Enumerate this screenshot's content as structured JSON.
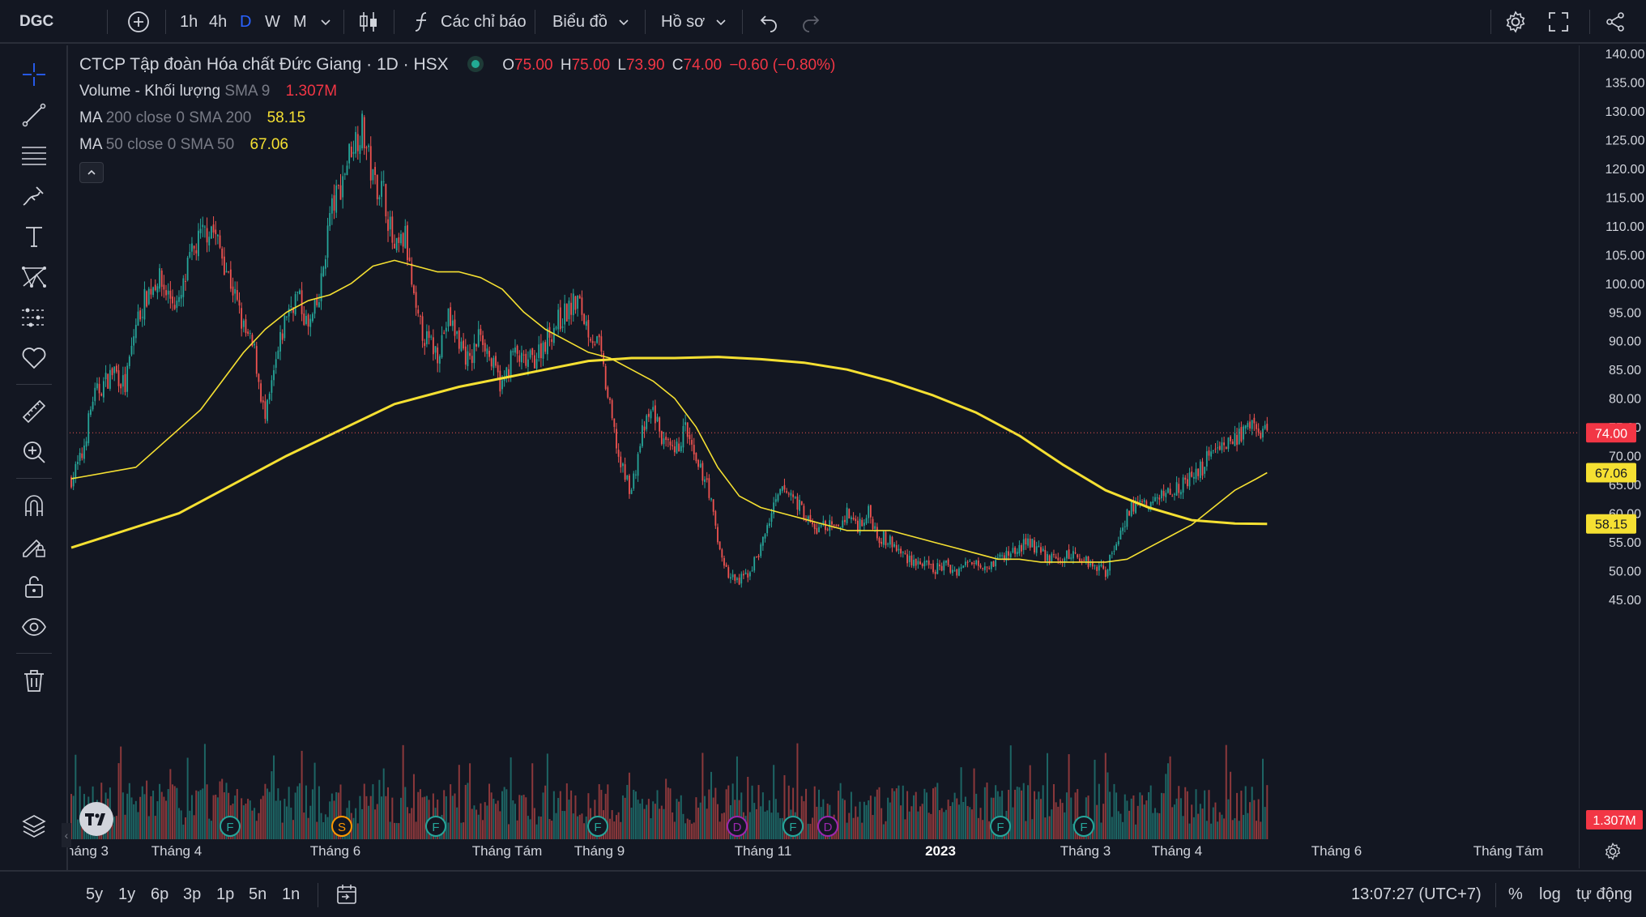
{
  "toolbar": {
    "symbol": "DGC",
    "intervals": [
      "1h",
      "4h",
      "D",
      "W",
      "M"
    ],
    "active_interval": "D",
    "indicators_label": "Các chỉ báo",
    "chart_type_label": "Biểu đồ",
    "profile_label": "Hồ sơ"
  },
  "legend": {
    "title": "CTCP Tập đoàn Hóa chất Đức Giang · 1D · HSX",
    "o_label": "O",
    "o": "75.00",
    "h_label": "H",
    "h": "75.00",
    "l_label": "L",
    "l": "73.90",
    "c_label": "C",
    "c": "74.00",
    "change": "−0.60 (−0.80%)",
    "volume_name": "Volume - Khối lượng",
    "volume_params": "SMA 9",
    "volume_value": "1.307M",
    "ma200_name": "MA",
    "ma200_params": "200 close 0 SMA 200",
    "ma200_value": "58.15",
    "ma50_name": "MA",
    "ma50_params": "50 close 0 SMA 50",
    "ma50_value": "67.06"
  },
  "price_axis": {
    "ticks": [
      "140.00",
      "135.00",
      "130.00",
      "125.00",
      "120.00",
      "115.00",
      "110.00",
      "105.00",
      "100.00",
      "95.00",
      "90.00",
      "85.00",
      "80.00",
      "75.00",
      "70.00",
      "65.00",
      "60.00",
      "55.00",
      "50.00",
      "45.00"
    ],
    "last_price": "74.00",
    "ma50_label": "67.06",
    "ma200_label": "58.15",
    "volume_label": "1.307M"
  },
  "time_axis": {
    "labels": [
      "háng 3",
      "Tháng 4",
      "Tháng 6",
      "Tháng Tám",
      "Tháng 9",
      "Tháng 11",
      "2023",
      "Tháng 3",
      "Tháng 4",
      "Tháng 6",
      "Tháng Tám"
    ]
  },
  "events": [
    "F",
    "S",
    "F",
    "F",
    "D",
    "F",
    "D",
    "F",
    "F"
  ],
  "bottom": {
    "ranges": [
      "5y",
      "1y",
      "6p",
      "3p",
      "1p",
      "5n",
      "1n"
    ],
    "time": "13:07:27 (UTC+7)",
    "percent": "%",
    "log": "log",
    "auto": "tự động"
  },
  "colors": {
    "up": "#26a69a",
    "down": "#ef5350",
    "ma": "#f5e032",
    "background": "#131722"
  },
  "chart_data": {
    "type": "candlestick",
    "ylim": [
      43,
      141
    ],
    "anchors": [
      [
        0,
        66
      ],
      [
        5,
        70
      ],
      [
        10,
        80
      ],
      [
        20,
        85
      ],
      [
        25,
        82
      ],
      [
        30,
        93
      ],
      [
        35,
        98
      ],
      [
        40,
        101
      ],
      [
        45,
        98
      ],
      [
        50,
        96
      ],
      [
        55,
        104
      ],
      [
        60,
        108
      ],
      [
        65,
        110
      ],
      [
        70,
        105
      ],
      [
        75,
        99
      ],
      [
        80,
        92
      ],
      [
        85,
        88
      ],
      [
        90,
        76
      ],
      [
        95,
        86
      ],
      [
        100,
        95
      ],
      [
        105,
        98
      ],
      [
        110,
        92
      ],
      [
        115,
        97
      ],
      [
        120,
        112
      ],
      [
        125,
        117
      ],
      [
        130,
        124
      ],
      [
        135,
        127
      ],
      [
        140,
        118
      ],
      [
        145,
        116
      ],
      [
        150,
        105
      ],
      [
        155,
        108
      ],
      [
        160,
        94
      ],
      [
        165,
        90
      ],
      [
        170,
        88
      ],
      [
        175,
        94
      ],
      [
        180,
        90
      ],
      [
        185,
        86
      ],
      [
        190,
        92
      ],
      [
        195,
        86
      ],
      [
        200,
        82
      ],
      [
        205,
        88
      ],
      [
        210,
        86
      ],
      [
        215,
        87
      ],
      [
        220,
        90
      ],
      [
        225,
        93
      ],
      [
        230,
        95
      ],
      [
        235,
        97
      ],
      [
        240,
        92
      ],
      [
        245,
        89
      ],
      [
        250,
        78
      ],
      [
        255,
        68
      ],
      [
        260,
        64
      ],
      [
        265,
        74
      ],
      [
        270,
        78
      ],
      [
        275,
        72
      ],
      [
        280,
        70
      ],
      [
        285,
        75
      ],
      [
        290,
        68
      ],
      [
        295,
        66
      ],
      [
        300,
        55
      ],
      [
        305,
        49
      ],
      [
        310,
        48
      ],
      [
        315,
        50
      ],
      [
        320,
        54
      ],
      [
        325,
        60
      ],
      [
        330,
        64
      ],
      [
        335,
        63
      ],
      [
        340,
        60
      ],
      [
        345,
        57
      ],
      [
        350,
        58
      ],
      [
        355,
        57
      ],
      [
        360,
        60
      ],
      [
        365,
        58
      ],
      [
        370,
        60
      ],
      [
        375,
        56
      ],
      [
        380,
        55
      ],
      [
        385,
        53
      ],
      [
        390,
        52
      ],
      [
        395,
        51
      ],
      [
        400,
        50
      ],
      [
        405,
        51
      ],
      [
        410,
        50
      ],
      [
        415,
        51
      ],
      [
        420,
        52
      ],
      [
        425,
        51
      ],
      [
        430,
        52
      ],
      [
        435,
        53
      ],
      [
        440,
        54
      ],
      [
        445,
        55
      ],
      [
        450,
        53
      ],
      [
        455,
        52
      ],
      [
        460,
        52
      ],
      [
        465,
        53
      ],
      [
        470,
        52
      ],
      [
        475,
        51
      ],
      [
        480,
        50
      ],
      [
        485,
        55
      ],
      [
        490,
        60
      ],
      [
        495,
        62
      ],
      [
        500,
        61
      ],
      [
        505,
        63
      ],
      [
        510,
        64
      ],
      [
        515,
        65
      ],
      [
        520,
        66
      ],
      [
        525,
        68
      ],
      [
        530,
        72
      ],
      [
        535,
        72
      ],
      [
        540,
        73
      ],
      [
        545,
        74
      ],
      [
        550,
        75
      ],
      [
        555,
        74
      ]
    ],
    "ma50_x": [
      0,
      30,
      60,
      80,
      90,
      100,
      110,
      120,
      130,
      140,
      150,
      160,
      170,
      180,
      190,
      200,
      210,
      220,
      230,
      240,
      250,
      260,
      270,
      280,
      290,
      300,
      310,
      320,
      330,
      340,
      350,
      360,
      370,
      380,
      390,
      400,
      410,
      420,
      430,
      440,
      450,
      460,
      470,
      480,
      490,
      500,
      510,
      520,
      530,
      540,
      550,
      555
    ],
    "ma50_y": [
      66,
      68,
      78,
      88,
      92,
      95,
      97,
      98,
      100,
      103,
      104,
      103,
      102,
      102,
      101,
      99,
      95,
      92,
      90,
      88,
      87,
      85,
      83,
      80,
      75,
      68,
      63,
      61,
      60,
      59,
      58,
      57,
      57,
      57,
      56,
      55,
      54,
      53,
      52,
      52,
      51.5,
      51.5,
      51.5,
      51.5,
      52,
      54,
      56,
      58,
      61,
      64,
      66,
      67.06
    ],
    "ma200_x": [
      0,
      50,
      100,
      150,
      180,
      200,
      220,
      240,
      260,
      280,
      300,
      320,
      340,
      360,
      380,
      400,
      420,
      440,
      460,
      480,
      500,
      520,
      540,
      555
    ],
    "ma200_y": [
      54,
      60,
      70,
      79,
      82,
      83.5,
      85,
      86.5,
      87,
      87,
      87.2,
      86.8,
      86.2,
      85,
      83,
      80.5,
      77.5,
      73.5,
      68.5,
      64,
      61,
      58.8,
      58.2,
      58.15
    ]
  }
}
